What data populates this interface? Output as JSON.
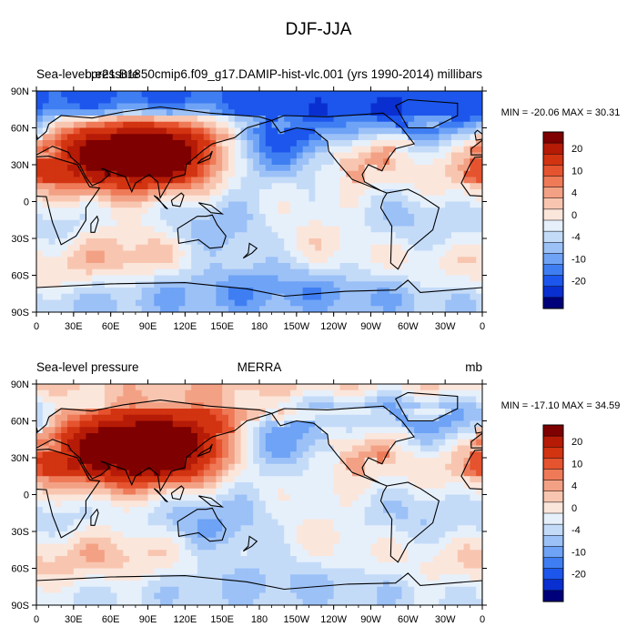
{
  "figure": {
    "title": "DJF-JJA"
  },
  "chart_data": [
    {
      "type": "contour-map",
      "variable": "Sea-level pressure",
      "left_title": "Sea-level pressure",
      "center_title": "b.e21.B1850cmip6.f09_g17.DAMIP-hist-vlc.001 (yrs 1990-2014)",
      "units": "millibars",
      "min_max_text": "MIN = -20.06 MAX =  30.31",
      "min": -20.06,
      "max": 30.31,
      "x_ticks": [
        "0",
        "30E",
        "60E",
        "90E",
        "120E",
        "150E",
        "180",
        "150W",
        "120W",
        "90W",
        "60W",
        "30W",
        "0"
      ],
      "y_ticks": [
        "90N",
        "60N",
        "30N",
        "0",
        "30S",
        "60S",
        "90S"
      ],
      "xlim": [
        0,
        360
      ],
      "ylim": [
        -90,
        90
      ],
      "colorbar_levels": [
        -20,
        -15,
        -10,
        -8,
        -6,
        -4,
        -2,
        0,
        2,
        4,
        6,
        8,
        10,
        15,
        20
      ],
      "colorbar_labels": [
        "20",
        "10",
        "4",
        "0",
        "-4",
        "-10",
        "-20"
      ],
      "colors": [
        "#00007a",
        "#0a2fd1",
        "#1c56ec",
        "#3f7ef2",
        "#6ea3f6",
        "#9cc1f7",
        "#c4dbf8",
        "#e6f0fb",
        "#fbe6dc",
        "#f8c6b0",
        "#f3a185",
        "#ee7a58",
        "#e5532f",
        "#d23311",
        "#b51b06",
        "#7e0000"
      ],
      "features": [
        {
          "name": "siberian-high",
          "lon": 95,
          "lat": 42,
          "value": 30
        },
        {
          "name": "aleutian-low",
          "lon": 185,
          "lat": 48,
          "value": -18
        },
        {
          "name": "icelandic-low",
          "lon": 330,
          "lat": 62,
          "value": -12
        },
        {
          "name": "north-america-high",
          "lon": 255,
          "lat": 48,
          "value": 9
        },
        {
          "name": "south-indian-ocean-high",
          "lon": 85,
          "lat": -40,
          "value": 9
        },
        {
          "name": "south-pacific-high",
          "lon": 230,
          "lat": -40,
          "value": 4
        },
        {
          "name": "south-atlantic-high",
          "lon": 340,
          "lat": -35,
          "value": 4
        },
        {
          "name": "australia-low",
          "lon": 135,
          "lat": -25,
          "value": -8
        },
        {
          "name": "southern-africa-low",
          "lon": 25,
          "lat": -25,
          "value": -6
        },
        {
          "name": "south-america-low",
          "lon": 300,
          "lat": -20,
          "value": -6
        },
        {
          "name": "antarctic-low",
          "lon": 180,
          "lat": -70,
          "value": -9
        },
        {
          "name": "arctic-low",
          "lon": 200,
          "lat": 85,
          "value": -8
        },
        {
          "name": "sahara-high",
          "lon": 20,
          "lat": 25,
          "value": 6
        }
      ]
    },
    {
      "type": "contour-map",
      "variable": "Sea-level pressure",
      "left_title": "Sea-level pressure",
      "center_title": "MERRA",
      "units": "mb",
      "min_max_text": "MIN = -17.10 MAX =  34.59",
      "min": -17.1,
      "max": 34.59,
      "x_ticks": [
        "0",
        "30E",
        "60E",
        "90E",
        "120E",
        "150E",
        "180",
        "150W",
        "120W",
        "90W",
        "60W",
        "30W",
        "0"
      ],
      "y_ticks": [
        "90N",
        "60N",
        "30N",
        "0",
        "30S",
        "60S",
        "90S"
      ],
      "xlim": [
        0,
        360
      ],
      "ylim": [
        -90,
        90
      ],
      "colorbar_levels": [
        -20,
        -15,
        -10,
        -8,
        -6,
        -4,
        -2,
        0,
        2,
        4,
        6,
        8,
        10,
        15,
        20
      ],
      "colorbar_labels": [
        "20",
        "10",
        "4",
        "0",
        "-4",
        "-10",
        "-20"
      ],
      "colors": [
        "#00007a",
        "#0a2fd1",
        "#1c56ec",
        "#3f7ef2",
        "#6ea3f6",
        "#9cc1f7",
        "#c4dbf8",
        "#e6f0fb",
        "#fbe6dc",
        "#f8c6b0",
        "#f3a185",
        "#ee7a58",
        "#e5532f",
        "#d23311",
        "#b51b06",
        "#7e0000"
      ],
      "features": [
        {
          "name": "siberian-high",
          "lon": 95,
          "lat": 40,
          "value": 32
        },
        {
          "name": "aleutian-low",
          "lon": 190,
          "lat": 48,
          "value": -16
        },
        {
          "name": "icelandic-low",
          "lon": 330,
          "lat": 60,
          "value": -13
        },
        {
          "name": "north-america-high",
          "lon": 255,
          "lat": 45,
          "value": 9
        },
        {
          "name": "south-indian-ocean-high",
          "lon": 80,
          "lat": -45,
          "value": 7
        },
        {
          "name": "south-pacific-high",
          "lon": 230,
          "lat": -40,
          "value": 3
        },
        {
          "name": "south-atlantic-high",
          "lon": 345,
          "lat": -40,
          "value": 3
        },
        {
          "name": "australia-low",
          "lon": 135,
          "lat": -25,
          "value": -8
        },
        {
          "name": "southern-africa-low",
          "lon": 25,
          "lat": -25,
          "value": -5
        },
        {
          "name": "south-america-low",
          "lon": 300,
          "lat": -20,
          "value": -5
        },
        {
          "name": "antarctic-low",
          "lon": 180,
          "lat": -70,
          "value": -6
        },
        {
          "name": "arctic-high",
          "lon": 180,
          "lat": 85,
          "value": 6
        },
        {
          "name": "sahara-high",
          "lon": 20,
          "lat": 25,
          "value": 6
        }
      ]
    }
  ],
  "continents": {
    "note": "approximate outlines, lon(0-360)/lat pairs",
    "polygons": [
      {
        "name": "africa",
        "pts": [
          [
            -17,
            15
          ],
          [
            -10,
            5
          ],
          [
            8,
            4
          ],
          [
            10,
            -5
          ],
          [
            13,
            -17
          ],
          [
            20,
            -35
          ],
          [
            32,
            -28
          ],
          [
            40,
            -15
          ],
          [
            40,
            -5
          ],
          [
            51,
            11
          ],
          [
            43,
            12
          ],
          [
            33,
            30
          ],
          [
            10,
            37
          ],
          [
            -6,
            36
          ],
          [
            -10,
            30
          ]
        ]
      },
      {
        "name": "eurasia",
        "pts": [
          [
            -9,
            43
          ],
          [
            0,
            50
          ],
          [
            8,
            57
          ],
          [
            10,
            63
          ],
          [
            20,
            70
          ],
          [
            45,
            68
          ],
          [
            70,
            73
          ],
          [
            100,
            77
          ],
          [
            140,
            72
          ],
          [
            180,
            69
          ],
          [
            190,
            66
          ],
          [
            170,
            60
          ],
          [
            160,
            52
          ],
          [
            142,
            47
          ],
          [
            135,
            42
          ],
          [
            121,
            30
          ],
          [
            120,
            22
          ],
          [
            109,
            19
          ],
          [
            104,
            10
          ],
          [
            100,
            3
          ],
          [
            98,
            16
          ],
          [
            91,
            22
          ],
          [
            80,
            15
          ],
          [
            77,
            8
          ],
          [
            72,
            20
          ],
          [
            58,
            25
          ],
          [
            52,
            27
          ],
          [
            56,
            26
          ],
          [
            59,
            22
          ],
          [
            52,
            16
          ],
          [
            45,
            13
          ],
          [
            40,
            20
          ],
          [
            35,
            30
          ],
          [
            28,
            36
          ],
          [
            26,
            40
          ],
          [
            13,
            45
          ],
          [
            0,
            38
          ],
          [
            -9,
            38
          ]
        ]
      },
      {
        "name": "north-america",
        "pts": [
          [
            190,
            66
          ],
          [
            200,
            70
          ],
          [
            235,
            69
          ],
          [
            280,
            72
          ],
          [
            295,
            60
          ],
          [
            305,
            47
          ],
          [
            290,
            43
          ],
          [
            284,
            35
          ],
          [
            279,
            25
          ],
          [
            268,
            30
          ],
          [
            263,
            22
          ],
          [
            265,
            16
          ],
          [
            278,
            9
          ],
          [
            283,
            7
          ],
          [
            255,
            18
          ],
          [
            243,
            32
          ],
          [
            236,
            41
          ],
          [
            235,
            49
          ],
          [
            224,
            58
          ],
          [
            210,
            60
          ],
          [
            197,
            56
          ]
        ]
      },
      {
        "name": "greenland",
        "pts": [
          [
            300,
            60
          ],
          [
            320,
            60
          ],
          [
            340,
            70
          ],
          [
            340,
            80
          ],
          [
            300,
            83
          ],
          [
            290,
            78
          ]
        ]
      },
      {
        "name": "south-america",
        "pts": [
          [
            283,
            7
          ],
          [
            300,
            10
          ],
          [
            310,
            5
          ],
          [
            325,
            -5
          ],
          [
            320,
            -23
          ],
          [
            300,
            -40
          ],
          [
            292,
            -55
          ],
          [
            286,
            -50
          ],
          [
            287,
            -20
          ],
          [
            278,
            -5
          ],
          [
            280,
            2
          ]
        ]
      },
      {
        "name": "australia",
        "pts": [
          [
            114,
            -22
          ],
          [
            130,
            -12
          ],
          [
            137,
            -12
          ],
          [
            142,
            -11
          ],
          [
            146,
            -19
          ],
          [
            153,
            -28
          ],
          [
            150,
            -37
          ],
          [
            140,
            -38
          ],
          [
            131,
            -31
          ],
          [
            115,
            -34
          ]
        ]
      },
      {
        "name": "madagascar",
        "pts": [
          [
            44,
            -25
          ],
          [
            47,
            -25
          ],
          [
            50,
            -15
          ],
          [
            49,
            -12
          ],
          [
            44,
            -18
          ]
        ]
      },
      {
        "name": "antarctica",
        "pts": [
          [
            0,
            -70
          ],
          [
            60,
            -67
          ],
          [
            120,
            -66
          ],
          [
            170,
            -71
          ],
          [
            200,
            -77
          ],
          [
            250,
            -73
          ],
          [
            290,
            -72
          ],
          [
            300,
            -64
          ],
          [
            310,
            -74
          ],
          [
            360,
            -70
          ],
          [
            360,
            -90
          ],
          [
            0,
            -90
          ]
        ]
      },
      {
        "name": "borneo",
        "pts": [
          [
            109,
            1
          ],
          [
            117,
            7
          ],
          [
            119,
            5
          ],
          [
            116,
            -4
          ],
          [
            110,
            -3
          ]
        ]
      },
      {
        "name": "sumatra",
        "pts": [
          [
            95,
            5
          ],
          [
            106,
            -6
          ],
          [
            104,
            -5
          ],
          [
            98,
            3
          ]
        ]
      },
      {
        "name": "new-guinea",
        "pts": [
          [
            131,
            -1
          ],
          [
            141,
            -3
          ],
          [
            150,
            -10
          ],
          [
            141,
            -9
          ],
          [
            135,
            -4
          ]
        ]
      },
      {
        "name": "japan",
        "pts": [
          [
            130,
            31
          ],
          [
            140,
            35
          ],
          [
            142,
            41
          ],
          [
            140,
            38
          ],
          [
            133,
            34
          ]
        ]
      },
      {
        "name": "uk",
        "pts": [
          [
            -5,
            50
          ],
          [
            1,
            51
          ],
          [
            0,
            55
          ],
          [
            -4,
            58
          ],
          [
            -6,
            56
          ]
        ]
      },
      {
        "name": "new-zealand",
        "pts": [
          [
            172,
            -34
          ],
          [
            178,
            -38
          ],
          [
            174,
            -42
          ],
          [
            167,
            -46
          ],
          [
            171,
            -42
          ]
        ]
      }
    ]
  }
}
